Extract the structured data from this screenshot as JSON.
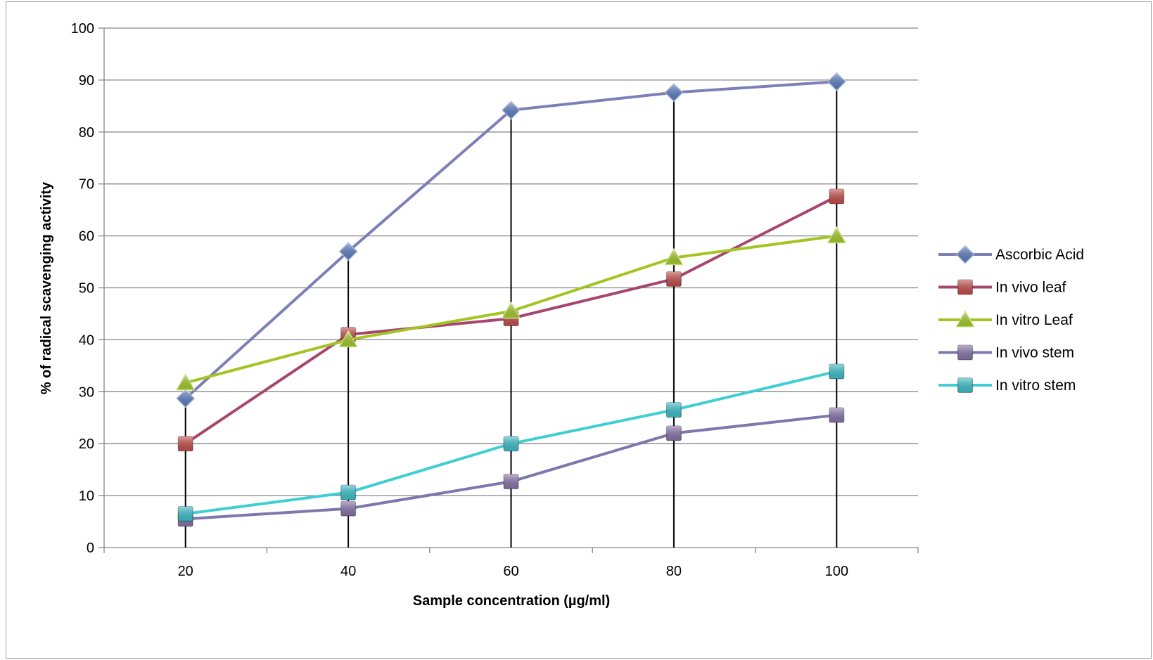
{
  "chart_data": {
    "type": "line",
    "title": "",
    "xlabel": "Sample concentration (µg/ml)",
    "ylabel": "% of radical scavenging activity",
    "x": [
      20,
      40,
      60,
      80,
      100
    ],
    "categories": [
      "20",
      "40",
      "60",
      "80",
      "100"
    ],
    "ylim": [
      0,
      100
    ],
    "yticks": [
      0,
      10,
      20,
      30,
      40,
      50,
      60,
      70,
      80,
      90,
      100
    ],
    "grid": "horizontal",
    "legend_position": "right",
    "series": [
      {
        "name": "Ascorbic Acid",
        "values": [
          28.7,
          57.0,
          84.2,
          87.6,
          89.7
        ],
        "color": "#7c7fb8",
        "marker": "diamond",
        "marker_color": "#5b7fc4"
      },
      {
        "name": "In vivo leaf",
        "values": [
          20.0,
          41.0,
          44.1,
          51.7,
          67.6
        ],
        "color": "#a8456e",
        "marker": "square",
        "marker_color": "#c84f4c"
      },
      {
        "name": "In vitro Leaf",
        "values": [
          31.7,
          40.0,
          45.5,
          55.8,
          60.0
        ],
        "color": "#a3c524",
        "marker": "triangle",
        "marker_color": "#a8cf2c"
      },
      {
        "name": "In vivo stem",
        "values": [
          5.5,
          7.5,
          12.7,
          22.0,
          25.5
        ],
        "color": "#7c78ae",
        "marker": "square",
        "marker_color": "#8a76ad"
      },
      {
        "name": "In vitro stem",
        "values": [
          6.5,
          10.6,
          20.0,
          26.5,
          33.9
        ],
        "color": "#3fcfd3",
        "marker": "square",
        "marker_color": "#3dc3cf"
      }
    ]
  }
}
